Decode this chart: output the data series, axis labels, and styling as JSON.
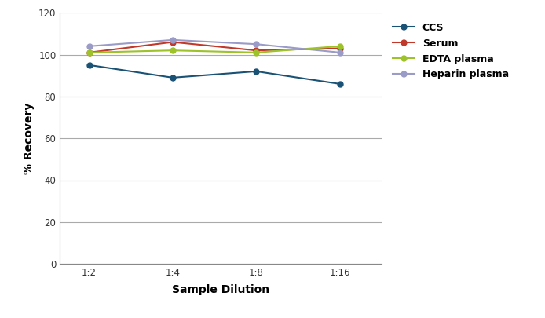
{
  "x_labels": [
    "1:2",
    "1:4",
    "1:8",
    "1:16"
  ],
  "x_positions": [
    0,
    1,
    2,
    3
  ],
  "series": [
    {
      "name": "CCS",
      "color": "#1a5276",
      "marker": "o",
      "values": [
        95,
        89,
        92,
        86
      ]
    },
    {
      "name": "Serum",
      "color": "#c0392b",
      "marker": "o",
      "values": [
        101,
        106,
        102,
        103
      ]
    },
    {
      "name": "EDTA plasma",
      "color": "#9dc22a",
      "marker": "o",
      "values": [
        101,
        102,
        101,
        104
      ]
    },
    {
      "name": "Heparin plasma",
      "color": "#9b9bc8",
      "marker": "o",
      "values": [
        104,
        107,
        105,
        101
      ]
    }
  ],
  "ylabel": "% Recovery",
  "xlabel": "Sample Dilution",
  "ylim": [
    0,
    120
  ],
  "yticks": [
    0,
    20,
    40,
    60,
    80,
    100,
    120
  ],
  "background_color": "#ffffff",
  "grid_color": "#aaaaaa",
  "linewidth": 1.5,
  "markersize": 5,
  "tick_fontsize": 8.5,
  "label_fontsize": 10,
  "legend_fontsize": 9
}
